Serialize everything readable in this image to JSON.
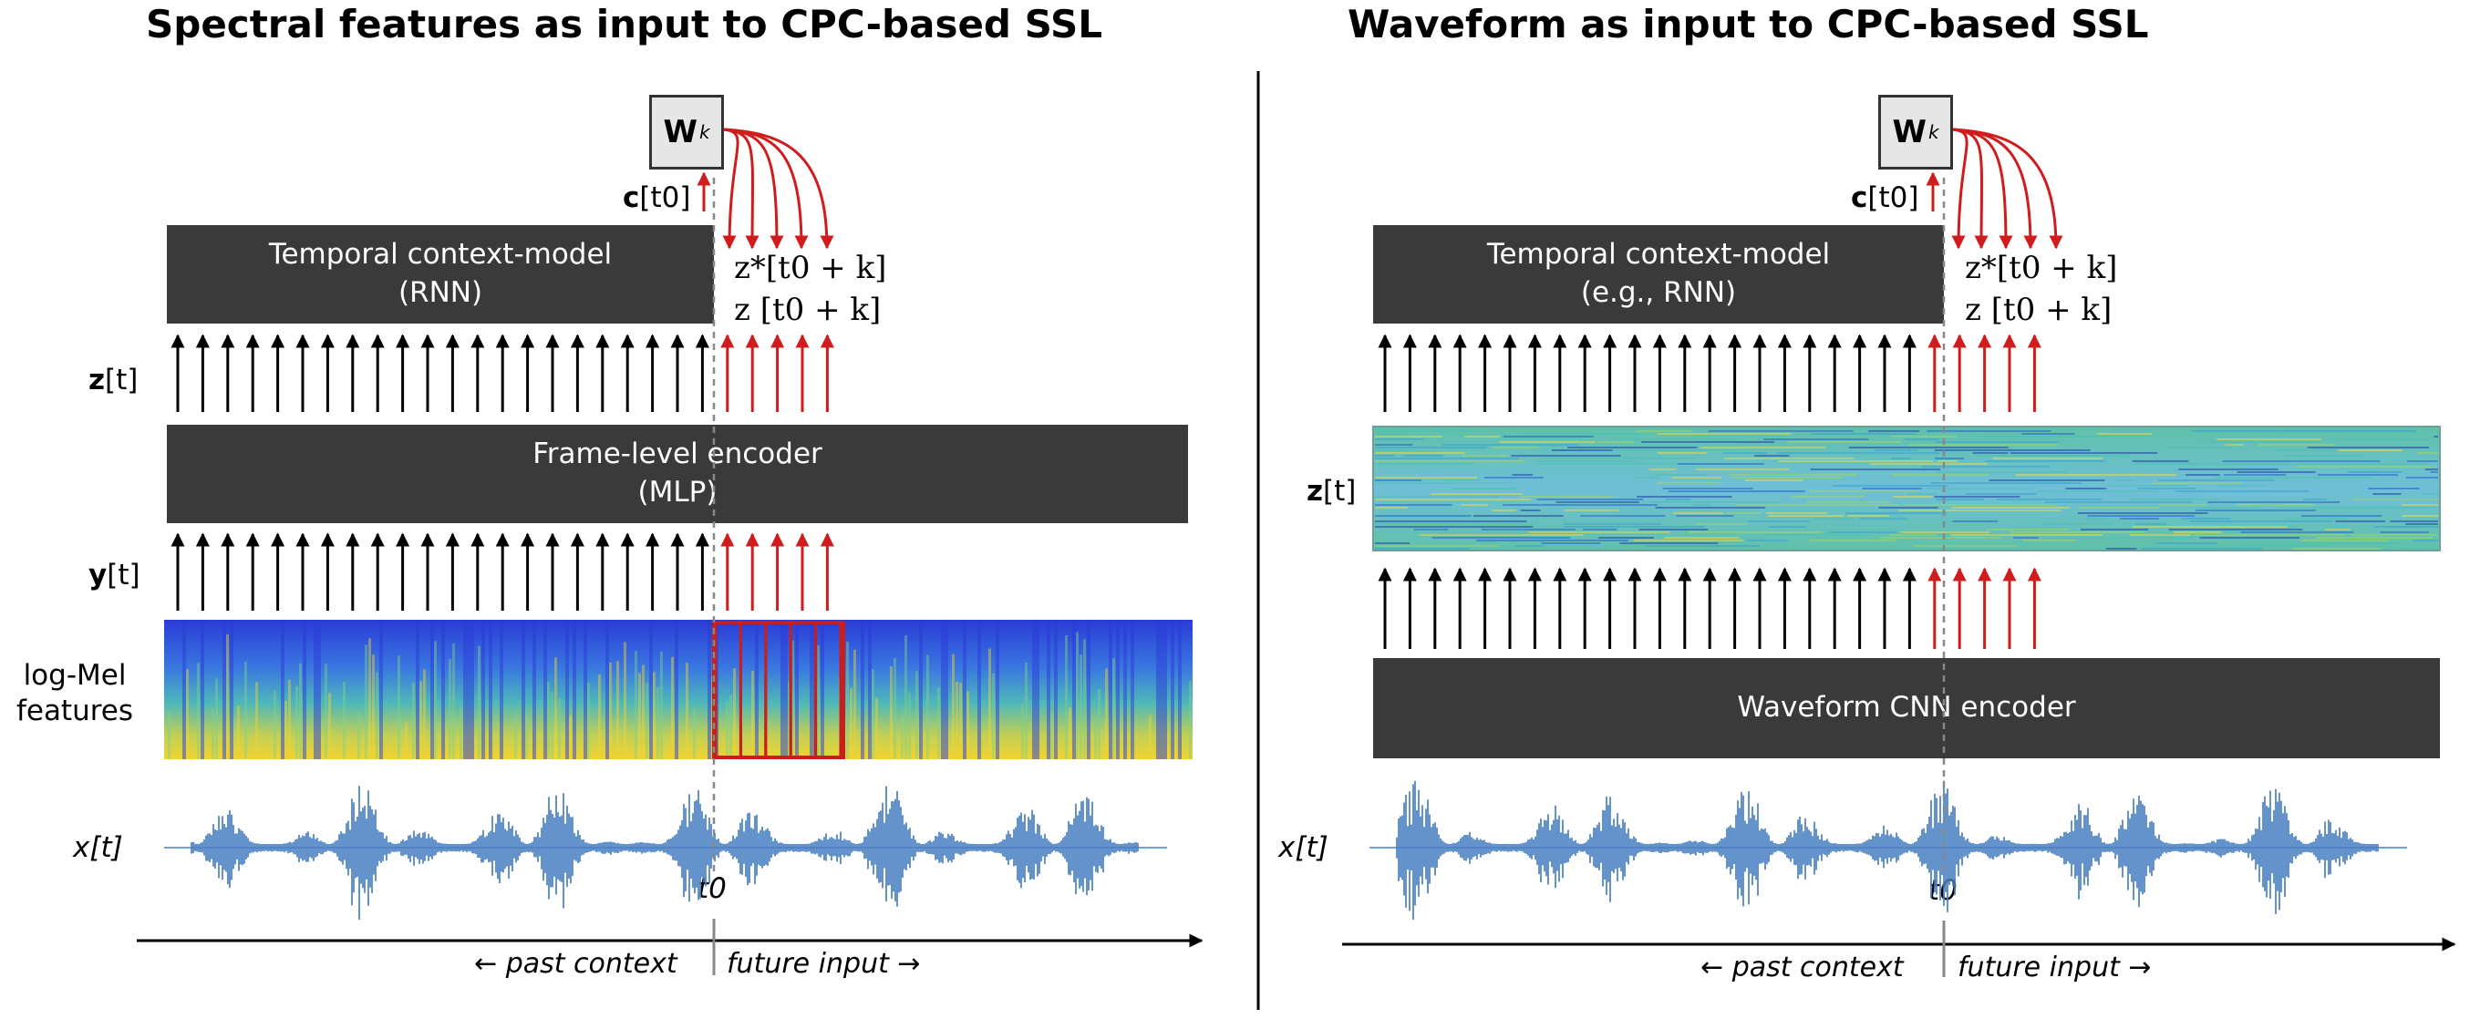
{
  "left_panel": {
    "title": "Spectral features as input to CPC-based SSL",
    "weight_box": {
      "main": "W",
      "sub": "k"
    },
    "c_label": {
      "main": "c",
      "arg": "[t0]"
    },
    "context_model": {
      "line1": "Temporal context-model",
      "line2": "(RNN)"
    },
    "prediction_labels": {
      "line1": "z*[t0 + k]",
      "line2": "z [t0 + k]"
    },
    "z_label": {
      "main": "z",
      "arg": "[t]"
    },
    "encoder": {
      "line1": "Frame-level encoder",
      "line2": "(MLP)"
    },
    "y_label": {
      "main": "y",
      "arg": "[t]"
    },
    "logmel_label": {
      "line1": "log-Mel",
      "line2": "features"
    },
    "x_label": "x[t]",
    "t0_label": "t0",
    "past_context": "past context",
    "future_input": "future input"
  },
  "right_panel": {
    "title": "Waveform as input to CPC-based SSL",
    "weight_box": {
      "main": "W",
      "sub": "k"
    },
    "c_label": {
      "main": "c",
      "arg": "[t0]"
    },
    "context_model": {
      "line1": "Temporal context-model",
      "line2": "(e.g., RNN)"
    },
    "prediction_labels": {
      "line1": "z*[t0 + k]",
      "line2": "z [t0 + k]"
    },
    "z_label": {
      "main": "z",
      "arg": "[t]"
    },
    "encoder": {
      "line1": "Waveform CNN encoder"
    },
    "x_label": "x[t]",
    "t0_label": "t0",
    "past_context": "past context",
    "future_input": "future input"
  },
  "colors": {
    "box_dark": "#3a3a3a",
    "future_arrow": "#d01c1c",
    "past_arrow": "#000000",
    "waveform": "#4a7fc1",
    "spectrogram_low": "#2a3bd6",
    "spectrogram_high": "#f2d330"
  }
}
